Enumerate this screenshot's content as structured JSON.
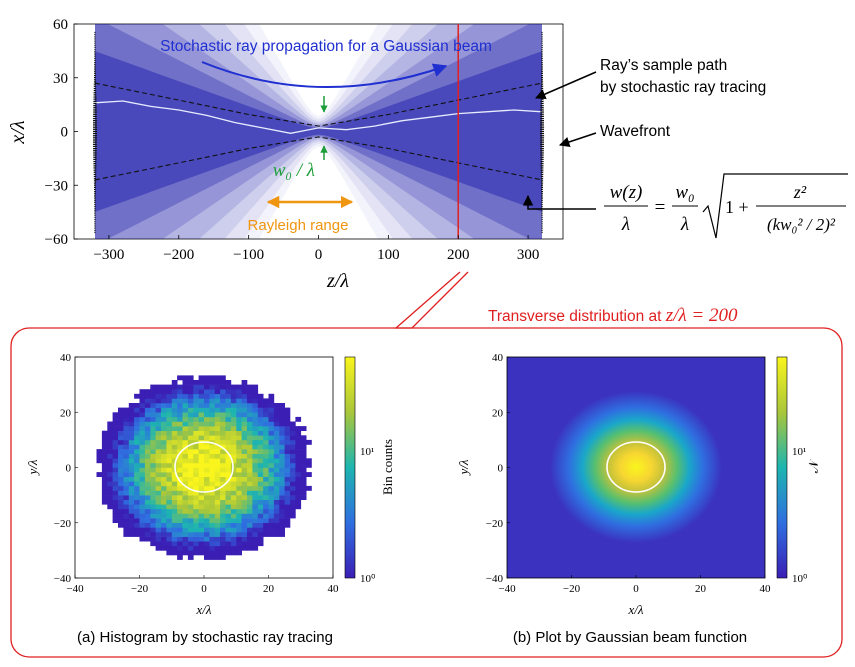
{
  "colors": {
    "beam": "#1b1baa",
    "annotation_blue": "#1f2fd0",
    "waist_green": "#1e9e3a",
    "rayleigh_orange": "#f0950f",
    "section_red": "#e02020",
    "histogram_low": "#3b1fb4",
    "histogram_high": "#f9f51d"
  },
  "top_plot": {
    "title": "Stochastic ray propagation for a Gaussian beam",
    "xlabel": "z/λ",
    "ylabel": "x/λ",
    "x_ticks": [
      "−300",
      "−200",
      "−100",
      "0",
      "100",
      "200",
      "300"
    ],
    "y_ticks": [
      "60",
      "30",
      "0",
      "−30",
      "−60"
    ],
    "w0_label": "w₀ / λ",
    "rayleigh_label": "Rayleigh range",
    "sample_path_label_1": "Ray’s sample path",
    "sample_path_label_2": "by stochastic ray tracing",
    "wavefront_label": "Wavefront",
    "formula_w": "w(z)",
    "formula_lambda": "λ",
    "formula_equals": "=",
    "formula_w0": "w₀",
    "formula_one_plus": "1 +",
    "formula_z2": "z²",
    "formula_den": "(kw₀² / 2)²"
  },
  "panel": {
    "title_prefix": "Transverse distribution at ",
    "title_math": "z/λ = 200",
    "caption_a": "(a) Histogram by stochastic ray tracing",
    "caption_b": "(b) Plot by Gaussian beam function"
  },
  "subplot_a": {
    "xlabel": "x/λ",
    "ylabel": "y/λ",
    "x_ticks": [
      "−40",
      "−20",
      "0",
      "20",
      "40"
    ],
    "y_ticks": [
      "40",
      "20",
      "0",
      "−20",
      "−40"
    ],
    "colorbar_label": "Bin counts",
    "colorbar_ticks": [
      "10¹",
      "10⁰"
    ]
  },
  "subplot_b": {
    "xlabel": "x/λ",
    "ylabel": "y/λ",
    "x_ticks": [
      "−40",
      "−20",
      "0",
      "20",
      "40"
    ],
    "y_ticks": [
      "40",
      "20",
      "0",
      "−20",
      "−40"
    ],
    "colorbar_label": "𝒩",
    "colorbar_ticks": [
      "10¹",
      "10⁰"
    ]
  },
  "chart_data": [
    {
      "type": "area",
      "title": "Stochastic ray propagation for a Gaussian beam",
      "xlabel": "z/λ",
      "ylabel": "x/λ",
      "xlim": [
        -350,
        350
      ],
      "ylim": [
        -60,
        60
      ],
      "beam_waist_w0": 3,
      "envelope_z": [
        -320,
        -200,
        -100,
        0,
        100,
        200,
        320
      ],
      "envelope_upper": [
        27,
        17.5,
        9.5,
        3,
        9.5,
        17.5,
        27
      ],
      "envelope_lower": [
        -27,
        -17.5,
        -9.5,
        -3,
        -9.5,
        -17.5,
        -27
      ],
      "sample_path_z": [
        -320,
        -280,
        -240,
        -200,
        -160,
        -120,
        -80,
        -40,
        0,
        40,
        80,
        120,
        160,
        200,
        240,
        280,
        320
      ],
      "sample_path_x": [
        16,
        17,
        14,
        12,
        9,
        5,
        2,
        -1,
        2,
        1,
        3,
        6,
        8,
        10,
        11,
        12,
        11
      ],
      "marker_line_z": 200,
      "rayleigh_range": [
        -40,
        40
      ]
    },
    {
      "type": "heatmap",
      "title": "(a) Histogram by stochastic ray tracing",
      "xlabel": "x/λ",
      "ylabel": "y/λ",
      "xlim": [
        -40,
        40
      ],
      "ylim": [
        -40,
        40
      ],
      "colorbar_label": "Bin counts",
      "colorbar_scale": "log",
      "colorbar_range": [
        1,
        40
      ],
      "beam_radius": 17.5,
      "center_contour_radius": 9
    },
    {
      "type": "heatmap",
      "title": "(b) Plot by Gaussian beam function",
      "xlabel": "x/λ",
      "ylabel": "y/λ",
      "xlim": [
        -40,
        40
      ],
      "ylim": [
        -40,
        40
      ],
      "colorbar_label": "𝒩",
      "colorbar_scale": "log",
      "colorbar_range": [
        1,
        40
      ],
      "beam_radius": 17.5,
      "center_contour_radius": 9
    }
  ]
}
